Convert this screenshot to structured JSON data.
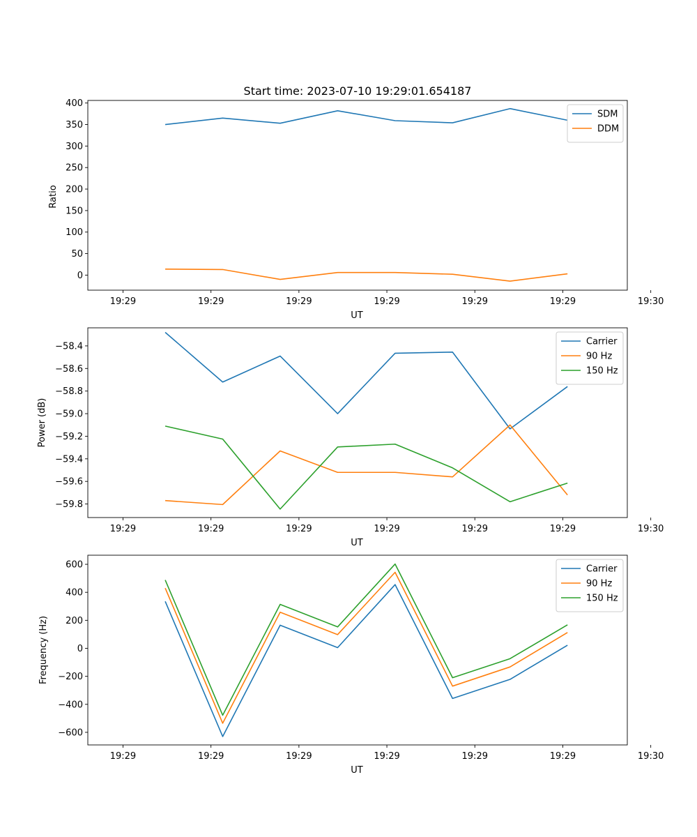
{
  "chart_data": [
    {
      "type": "line",
      "title": "Start time: 2023-07-10 19:29:01.654187",
      "xlabel": "UT",
      "ylabel": "Ratio",
      "xlim": [
        -0.6,
        8.6
      ],
      "ylim": [
        -35,
        406
      ],
      "x_ticks": [
        {
          "v": 0,
          "label": "19:29"
        },
        {
          "v": 1.5,
          "label": "19:29"
        },
        {
          "v": 3,
          "label": "19:29"
        },
        {
          "v": 4.5,
          "label": "19:29"
        },
        {
          "v": 6,
          "label": "19:29"
        },
        {
          "v": 7.5,
          "label": "19:29"
        },
        {
          "v": 9,
          "label": "19:30"
        }
      ],
      "y_ticks": [
        {
          "v": 0,
          "label": "0"
        },
        {
          "v": 50,
          "label": "50"
        },
        {
          "v": 100,
          "label": "100"
        },
        {
          "v": 150,
          "label": "150"
        },
        {
          "v": 200,
          "label": "200"
        },
        {
          "v": 250,
          "label": "250"
        },
        {
          "v": 300,
          "label": "300"
        },
        {
          "v": 350,
          "label": "350"
        },
        {
          "v": 400,
          "label": "400"
        }
      ],
      "legend": "top-right",
      "x": [
        0.72,
        1.7,
        2.68,
        3.66,
        4.64,
        5.62,
        6.6,
        7.58
      ],
      "series": [
        {
          "name": "SDM",
          "color": "#1f77b4",
          "values": [
            350,
            365,
            353,
            382,
            359,
            354,
            387,
            360
          ]
        },
        {
          "name": "DDM",
          "color": "#ff7f0e",
          "values": [
            14,
            13,
            -10,
            6,
            6,
            2,
            -14,
            3
          ]
        }
      ]
    },
    {
      "type": "line",
      "title": "",
      "xlabel": "UT",
      "ylabel": "Power (dB)",
      "xlim": [
        -0.6,
        8.6
      ],
      "ylim": [
        -59.92,
        -58.24
      ],
      "x_ticks": [
        {
          "v": 0,
          "label": "19:29"
        },
        {
          "v": 1.5,
          "label": "19:29"
        },
        {
          "v": 3,
          "label": "19:29"
        },
        {
          "v": 4.5,
          "label": "19:29"
        },
        {
          "v": 6,
          "label": "19:29"
        },
        {
          "v": 7.5,
          "label": "19:29"
        },
        {
          "v": 9,
          "label": "19:30"
        }
      ],
      "y_ticks": [
        {
          "v": -59.8,
          "label": "−59.8"
        },
        {
          "v": -59.6,
          "label": "−59.6"
        },
        {
          "v": -59.4,
          "label": "−59.4"
        },
        {
          "v": -59.2,
          "label": "−59.2"
        },
        {
          "v": -59.0,
          "label": "−59.0"
        },
        {
          "v": -58.8,
          "label": "−58.8"
        },
        {
          "v": -58.6,
          "label": "−58.6"
        },
        {
          "v": -58.4,
          "label": "−58.4"
        }
      ],
      "legend": "top-right",
      "x": [
        0.72,
        1.7,
        2.68,
        3.66,
        4.64,
        5.62,
        6.6,
        7.58
      ],
      "series": [
        {
          "name": "Carrier",
          "color": "#1f77b4",
          "values": [
            -58.28,
            -58.72,
            -58.49,
            -59.0,
            -58.465,
            -58.455,
            -59.135,
            -58.76
          ]
        },
        {
          "name": "90 Hz",
          "color": "#ff7f0e",
          "values": [
            -59.77,
            -59.805,
            -59.33,
            -59.52,
            -59.52,
            -59.56,
            -59.1,
            -59.72
          ]
        },
        {
          "name": "150 Hz",
          "color": "#2ca02c",
          "values": [
            -59.11,
            -59.225,
            -59.845,
            -59.295,
            -59.27,
            -59.48,
            -59.78,
            -59.615
          ]
        }
      ]
    },
    {
      "type": "line",
      "title": "",
      "xlabel": "UT",
      "ylabel": "Frequency (Hz)",
      "xlim": [
        -0.6,
        8.6
      ],
      "ylim": [
        -690,
        665
      ],
      "x_ticks": [
        {
          "v": 0,
          "label": "19:29"
        },
        {
          "v": 1.5,
          "label": "19:29"
        },
        {
          "v": 3,
          "label": "19:29"
        },
        {
          "v": 4.5,
          "label": "19:29"
        },
        {
          "v": 6,
          "label": "19:29"
        },
        {
          "v": 7.5,
          "label": "19:29"
        },
        {
          "v": 9,
          "label": "19:30"
        }
      ],
      "y_ticks": [
        {
          "v": -600,
          "label": "−600"
        },
        {
          "v": -400,
          "label": "−400"
        },
        {
          "v": -200,
          "label": "−200"
        },
        {
          "v": 0,
          "label": "0"
        },
        {
          "v": 200,
          "label": "200"
        },
        {
          "v": 400,
          "label": "400"
        },
        {
          "v": 600,
          "label": "600"
        }
      ],
      "legend": "top-right",
      "x": [
        0.72,
        1.7,
        2.68,
        3.66,
        4.64,
        5.62,
        6.6,
        7.58
      ],
      "series": [
        {
          "name": "Carrier",
          "color": "#1f77b4",
          "values": [
            335,
            -630,
            165,
            5,
            455,
            -358,
            -222,
            22
          ]
        },
        {
          "name": "90 Hz",
          "color": "#ff7f0e",
          "values": [
            430,
            -535,
            258,
            98,
            543,
            -270,
            -133,
            113
          ]
        },
        {
          "name": "150 Hz",
          "color": "#2ca02c",
          "values": [
            488,
            -478,
            314,
            153,
            602,
            -210,
            -74,
            168
          ]
        }
      ]
    }
  ]
}
